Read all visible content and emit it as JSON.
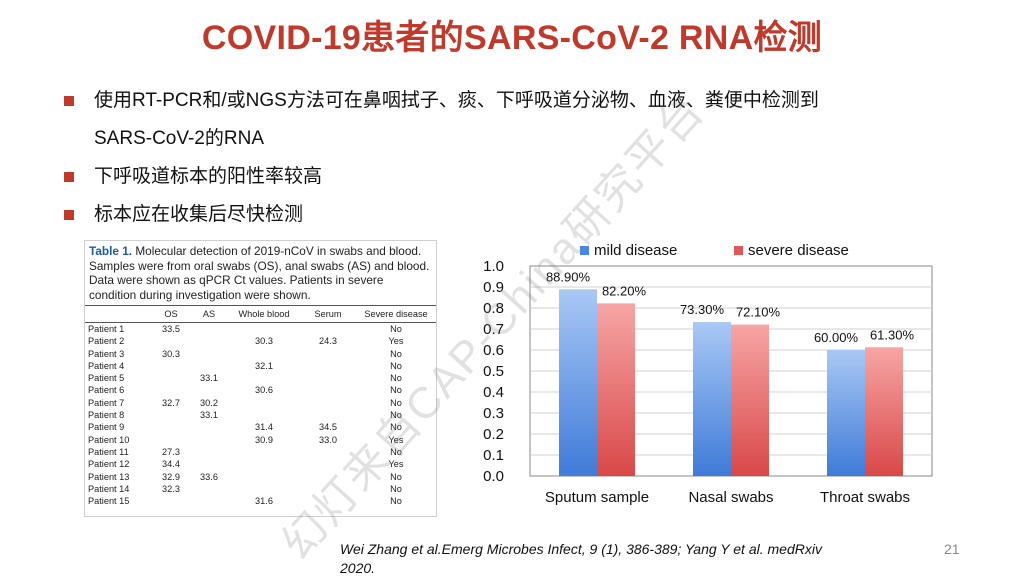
{
  "slide": {
    "title": "COVID-19患者的SARS-CoV-2 RNA检测",
    "bullets": [
      "使用RT-PCR和/或NGS方法可在鼻咽拭子、痰、下呼吸道分泌物、血液、粪便中检测到",
      "SARS-CoV-2的RNA",
      "下呼吸道标本的阳性率较高",
      "标本应在收集后尽快检测"
    ],
    "citation_line1": "Wei Zhang et al.Emerg Microbes Infect, 9 (1), 386-389; Yang Y et al. medRxiv",
    "citation_line2": "2020.",
    "page_number": "21",
    "watermark": "幻灯来自CAP-China研究平台",
    "accent_color": "#c0392b"
  },
  "table": {
    "caption_label": "Table 1.",
    "caption_text": " Molecular detection of 2019-nCoV in swabs and blood. Samples were from oral swabs (OS), anal swabs (AS) and blood. Data were shown as qPCR Ct values. Patients in severe condition during investigation were shown.",
    "headers": [
      "",
      "OS",
      "AS",
      "Whole blood",
      "Serum",
      "Severe disease"
    ],
    "rows": [
      [
        "Patient 1",
        "33.5",
        "",
        "",
        "",
        "No"
      ],
      [
        "Patient 2",
        "",
        "",
        "30.3",
        "24.3",
        "Yes"
      ],
      [
        "Patient 3",
        "30.3",
        "",
        "",
        "",
        "No"
      ],
      [
        "Patient 4",
        "",
        "",
        "32.1",
        "",
        "No"
      ],
      [
        "Patient 5",
        "",
        "33.1",
        "",
        "",
        "No"
      ],
      [
        "Patient 6",
        "",
        "",
        "30.6",
        "",
        "No"
      ],
      [
        "Patient 7",
        "32.7",
        "30.2",
        "",
        "",
        "No"
      ],
      [
        "Patient 8",
        "",
        "33.1",
        "",
        "",
        "No"
      ],
      [
        "Patient 9",
        "",
        "",
        "31.4",
        "34.5",
        "No"
      ],
      [
        "Patient 10",
        "",
        "",
        "30.9",
        "33.0",
        "Yes"
      ],
      [
        "Patient 11",
        "27.3",
        "",
        "",
        "",
        "No"
      ],
      [
        "Patient 12",
        "34.4",
        "",
        "",
        "",
        "Yes"
      ],
      [
        "Patient 13",
        "32.9",
        "33.6",
        "",
        "",
        "No"
      ],
      [
        "Patient 14",
        "32.3",
        "",
        "",
        "",
        "No"
      ],
      [
        "Patient 15",
        "",
        "",
        "31.6",
        "",
        "No"
      ]
    ]
  },
  "chart_data": {
    "type": "bar",
    "categories": [
      "Sputum sample",
      "Nasal swabs",
      "Throat swabs"
    ],
    "series": [
      {
        "name": "mild disease",
        "values": [
          0.889,
          0.733,
          0.6
        ],
        "labels": [
          "88.90%",
          "73.30%",
          "60.00%"
        ],
        "color": "#4a86e8"
      },
      {
        "name": "severe disease",
        "values": [
          0.822,
          0.721,
          0.613
        ],
        "labels": [
          "82.20%",
          "72.10%",
          "61.30%"
        ],
        "color": "#e05555"
      }
    ],
    "yticks": [
      "0.0",
      "0.1",
      "0.2",
      "0.3",
      "0.4",
      "0.5",
      "0.6",
      "0.7",
      "0.8",
      "0.9",
      "1.0"
    ],
    "ylim": [
      0,
      1.0
    ],
    "grid": true,
    "legend_position": "top"
  }
}
